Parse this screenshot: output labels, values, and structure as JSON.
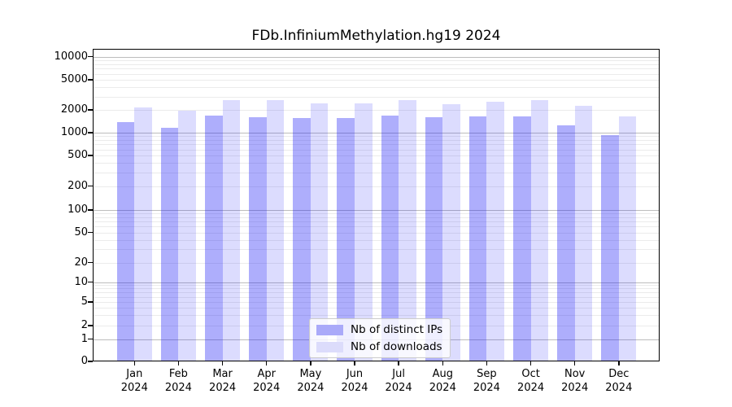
{
  "chart_data": {
    "type": "bar",
    "title": "FDb.InfiniumMethylation.hg19 2024",
    "categories": [
      {
        "month": "Jan",
        "year": "2024"
      },
      {
        "month": "Feb",
        "year": "2024"
      },
      {
        "month": "Mar",
        "year": "2024"
      },
      {
        "month": "Apr",
        "year": "2024"
      },
      {
        "month": "May",
        "year": "2024"
      },
      {
        "month": "Jun",
        "year": "2024"
      },
      {
        "month": "Jul",
        "year": "2024"
      },
      {
        "month": "Aug",
        "year": "2024"
      },
      {
        "month": "Sep",
        "year": "2024"
      },
      {
        "month": "Oct",
        "year": "2024"
      },
      {
        "month": "Nov",
        "year": "2024"
      },
      {
        "month": "Dec",
        "year": "2024"
      }
    ],
    "series": [
      {
        "name": "Nb of distinct IPs",
        "fill": "rgba(22,22,245,0.35)",
        "color_hex": "#aaaaf9",
        "values": [
          1370,
          1170,
          1670,
          1610,
          1560,
          1580,
          1670,
          1600,
          1640,
          1660,
          1240,
          940
        ]
      },
      {
        "name": "Nb of downloads",
        "fill": "rgba(22,22,245,0.15)",
        "color_hex": "#dcdcfb",
        "values": [
          2180,
          1960,
          2700,
          2700,
          2420,
          2420,
          2700,
          2390,
          2550,
          2700,
          2250,
          1640
        ]
      }
    ],
    "y_ticks": [
      "10000",
      "5000",
      "2000",
      "1000",
      "500",
      "200",
      "100",
      "50",
      "20",
      "10",
      "5",
      "2",
      "1",
      "0"
    ],
    "y_scale": "symlog (log 1-10000, linear below 1)",
    "ylim": [
      0,
      10800
    ],
    "grid": "horizontal major (decades) + minor (2-9 per decade)",
    "legend_position": "lower center"
  }
}
